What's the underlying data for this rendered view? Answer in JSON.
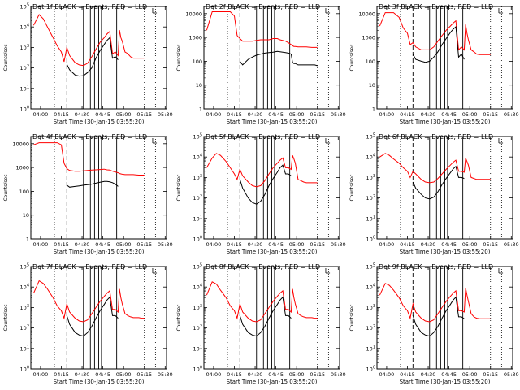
{
  "figure": {
    "title_suffix": "BLACK = Events, RED = LLD",
    "ylabel": "Counts/sec",
    "xlabel": "Start Time (30-Jan-15 03:55:20)",
    "x_tick_labels": [
      "04:00",
      "04:15",
      "04:30",
      "04:45",
      "05:00",
      "05:15",
      "05:30"
    ],
    "series_colors": {
      "events": "#000000",
      "lld": "#ff0000"
    }
  },
  "chart_data": [
    {
      "type": "line",
      "title": "Det 1f",
      "detector": "1f",
      "ylim": [
        1,
        100000
      ],
      "yscale": "log",
      "ytick_labels": [
        "10^0",
        "10^1",
        "10^2",
        "10^3",
        "10^4",
        "10^5"
      ],
      "ytick_values": [
        1,
        10,
        100,
        1000,
        10000,
        100000
      ],
      "x_minutes": [
        0,
        4,
        7,
        10,
        14,
        17,
        20,
        22,
        24,
        26,
        30,
        33,
        36,
        39,
        42,
        45,
        48,
        51,
        53,
        55,
        57,
        59,
        61,
        62,
        63,
        64,
        66,
        68,
        70,
        72,
        74,
        76,
        78,
        80
      ],
      "lld": [
        12000,
        40000,
        25000,
        10000,
        3000,
        1200,
        600,
        200,
        1000,
        400,
        180,
        140,
        130,
        170,
        350,
        800,
        1800,
        3000,
        4500,
        6000,
        500,
        600,
        400,
        7000,
        3000,
        2000,
        600,
        500,
        350,
        300,
        300,
        300,
        300,
        300
      ],
      "events": [
        null,
        null,
        null,
        null,
        null,
        null,
        null,
        null,
        150,
        80,
        45,
        40,
        42,
        60,
        100,
        300,
        700,
        1400,
        2200,
        3000,
        300,
        350,
        250,
        null,
        null,
        null,
        null,
        null,
        null,
        null,
        null,
        null,
        null,
        null
      ]
    },
    {
      "type": "line",
      "title": "Det 2f",
      "detector": "2f",
      "ylim": [
        1,
        20000
      ],
      "yscale": "log",
      "ytick_labels": [
        "1",
        "10",
        "100",
        "1000",
        "10000"
      ],
      "ytick_values": [
        1,
        10,
        100,
        1000,
        10000
      ],
      "x_minutes": [
        0,
        4,
        7,
        10,
        14,
        17,
        20,
        22,
        24,
        26,
        30,
        33,
        36,
        39,
        42,
        45,
        48,
        51,
        53,
        55,
        57,
        59,
        61,
        62,
        63,
        64,
        66,
        68,
        70,
        72,
        74,
        76,
        78,
        80
      ],
      "lld": [
        2000,
        12000,
        12000,
        12000,
        12000,
        12000,
        8000,
        1200,
        900,
        700,
        700,
        700,
        750,
        800,
        800,
        800,
        900,
        900,
        800,
        750,
        700,
        600,
        500,
        450,
        420,
        420,
        400,
        400,
        400,
        400,
        390,
        380,
        380,
        380
      ],
      "events": [
        null,
        null,
        null,
        null,
        null,
        null,
        null,
        null,
        100,
        70,
        120,
        150,
        180,
        200,
        220,
        230,
        240,
        260,
        250,
        240,
        230,
        220,
        200,
        90,
        80,
        80,
        70,
        70,
        70,
        70,
        70,
        70,
        70,
        65
      ]
    },
    {
      "type": "line",
      "title": "Det 3f",
      "detector": "3f",
      "ylim": [
        1,
        20000
      ],
      "yscale": "log",
      "ytick_labels": [
        "1",
        "10",
        "100",
        "1000",
        "10000"
      ],
      "ytick_values": [
        1,
        10,
        100,
        1000,
        10000
      ],
      "x_minutes": [
        0,
        4,
        7,
        10,
        14,
        17,
        20,
        22,
        24,
        26,
        30,
        33,
        36,
        39,
        42,
        45,
        48,
        51,
        53,
        55,
        57,
        59,
        61,
        62,
        63,
        64,
        66,
        68,
        70,
        72,
        74,
        76,
        78,
        80
      ],
      "lld": [
        3000,
        11000,
        11000,
        11000,
        7000,
        2500,
        1500,
        500,
        600,
        400,
        300,
        300,
        300,
        400,
        700,
        1200,
        2000,
        3000,
        4000,
        5000,
        300,
        400,
        300,
        3500,
        1500,
        800,
        300,
        250,
        200,
        190,
        190,
        190,
        190,
        190
      ],
      "events": [
        null,
        null,
        null,
        null,
        null,
        null,
        null,
        null,
        200,
        120,
        100,
        90,
        100,
        150,
        250,
        500,
        900,
        1600,
        2200,
        2800,
        150,
        200,
        120,
        null,
        null,
        null,
        null,
        null,
        null,
        null,
        null,
        null,
        null,
        null
      ]
    },
    {
      "type": "line",
      "title": "Det 4f",
      "detector": "4f",
      "ylim": [
        1,
        20000
      ],
      "yscale": "log",
      "ytick_labels": [
        "1",
        "10",
        "100",
        "1000",
        "10000"
      ],
      "ytick_values": [
        1,
        10,
        100,
        1000,
        10000
      ],
      "x_minutes": [
        0,
        4,
        7,
        10,
        14,
        17,
        20,
        22,
        24,
        26,
        30,
        33,
        36,
        39,
        42,
        45,
        48,
        51,
        53,
        55,
        57,
        59,
        61,
        62,
        63,
        64,
        66,
        68,
        70,
        72,
        74,
        76,
        78,
        80
      ],
      "lld": [
        9000,
        11000,
        11000,
        11000,
        11000,
        11000,
        9000,
        1500,
        900,
        750,
        700,
        700,
        720,
        750,
        780,
        800,
        820,
        850,
        800,
        780,
        700,
        650,
        600,
        560,
        540,
        520,
        500,
        500,
        500,
        500,
        490,
        480,
        480,
        480
      ],
      "events": [
        null,
        null,
        null,
        null,
        null,
        null,
        null,
        null,
        180,
        150,
        160,
        170,
        180,
        190,
        200,
        220,
        240,
        260,
        260,
        250,
        230,
        200,
        160,
        null,
        null,
        null,
        null,
        null,
        null,
        null,
        null,
        null,
        null,
        null
      ]
    },
    {
      "type": "line",
      "title": "Det 5f",
      "detector": "5f",
      "ylim": [
        1,
        100000
      ],
      "yscale": "log",
      "ytick_labels": [
        "10^0",
        "10^1",
        "10^2",
        "10^3",
        "10^4",
        "10^5"
      ],
      "ytick_values": [
        1,
        10,
        100,
        1000,
        10000,
        100000
      ],
      "x_minutes": [
        0,
        4,
        7,
        10,
        14,
        17,
        20,
        22,
        24,
        26,
        30,
        33,
        36,
        39,
        42,
        45,
        48,
        51,
        53,
        55,
        57,
        59,
        61,
        62,
        63,
        64,
        66,
        68,
        70,
        72,
        74,
        76,
        78,
        80
      ],
      "lld": [
        3000,
        9000,
        15000,
        12000,
        6000,
        3000,
        1500,
        800,
        2500,
        1200,
        600,
        400,
        350,
        400,
        700,
        1500,
        3000,
        5000,
        7000,
        9000,
        3000,
        3000,
        2500,
        12000,
        8000,
        5000,
        800,
        700,
        600,
        550,
        550,
        550,
        550,
        550
      ],
      "events": [
        null,
        null,
        null,
        null,
        null,
        null,
        null,
        null,
        800,
        300,
        100,
        60,
        50,
        70,
        150,
        400,
        900,
        1800,
        3000,
        4000,
        1500,
        1500,
        1200,
        null,
        null,
        null,
        null,
        null,
        null,
        null,
        null,
        null,
        null,
        null
      ]
    },
    {
      "type": "line",
      "title": "Det 6f",
      "detector": "6f",
      "ylim": [
        1,
        100000
      ],
      "yscale": "log",
      "ytick_labels": [
        "10^0",
        "10^1",
        "10^2",
        "10^3",
        "10^4",
        "10^5"
      ],
      "ytick_values": [
        1,
        10,
        100,
        1000,
        10000,
        100000
      ],
      "x_minutes": [
        0,
        4,
        7,
        10,
        14,
        17,
        20,
        22,
        24,
        26,
        30,
        33,
        36,
        39,
        42,
        45,
        48,
        51,
        53,
        55,
        57,
        59,
        61,
        62,
        63,
        64,
        66,
        68,
        70,
        72,
        74,
        76,
        78,
        80
      ],
      "lld": [
        10000,
        15000,
        12000,
        8000,
        5000,
        3000,
        2000,
        1000,
        2000,
        1500,
        800,
        600,
        550,
        600,
        900,
        1500,
        2500,
        4000,
        5500,
        7000,
        2000,
        2000,
        1800,
        9000,
        6000,
        4000,
        1000,
        900,
        800,
        800,
        800,
        800,
        800,
        800
      ],
      "events": [
        null,
        null,
        null,
        null,
        null,
        null,
        null,
        null,
        600,
        300,
        150,
        100,
        90,
        110,
        200,
        450,
        900,
        1700,
        2600,
        3500,
        1000,
        1000,
        900,
        null,
        null,
        null,
        null,
        null,
        null,
        null,
        null,
        null,
        null,
        null
      ]
    },
    {
      "type": "line",
      "title": "Det 7f",
      "detector": "7f",
      "ylim": [
        1,
        100000
      ],
      "yscale": "log",
      "ytick_labels": [
        "10^0",
        "10^1",
        "10^2",
        "10^3",
        "10^4",
        "10^5"
      ],
      "ytick_values": [
        1,
        10,
        100,
        1000,
        10000,
        100000
      ],
      "x_minutes": [
        0,
        4,
        7,
        10,
        14,
        17,
        20,
        22,
        24,
        26,
        30,
        33,
        36,
        39,
        42,
        45,
        48,
        51,
        53,
        55,
        57,
        59,
        61,
        62,
        63,
        64,
        66,
        68,
        70,
        72,
        74,
        76,
        78,
        80
      ],
      "lld": [
        5000,
        20000,
        15000,
        8000,
        3000,
        1200,
        700,
        300,
        1500,
        600,
        300,
        220,
        200,
        250,
        500,
        1000,
        2000,
        3500,
        5000,
        6500,
        800,
        800,
        600,
        8000,
        3000,
        1500,
        500,
        400,
        350,
        320,
        320,
        320,
        300,
        300
      ],
      "events": [
        null,
        null,
        null,
        null,
        null,
        null,
        null,
        null,
        400,
        150,
        60,
        45,
        40,
        60,
        120,
        300,
        700,
        1400,
        2300,
        3200,
        400,
        400,
        300,
        null,
        null,
        null,
        null,
        null,
        null,
        null,
        null,
        null,
        null,
        null
      ]
    },
    {
      "type": "line",
      "title": "Det 8f",
      "detector": "8f",
      "ylim": [
        1,
        100000
      ],
      "yscale": "log",
      "ytick_labels": [
        "10^0",
        "10^1",
        "10^2",
        "10^3",
        "10^4",
        "10^5"
      ],
      "ytick_values": [
        1,
        10,
        100,
        1000,
        10000,
        100000
      ],
      "x_minutes": [
        0,
        4,
        7,
        10,
        14,
        17,
        20,
        22,
        24,
        26,
        30,
        33,
        36,
        39,
        42,
        45,
        48,
        51,
        53,
        55,
        57,
        59,
        61,
        62,
        63,
        64,
        66,
        68,
        70,
        72,
        74,
        76,
        78,
        80
      ],
      "lld": [
        4000,
        18000,
        14000,
        7000,
        3000,
        1200,
        700,
        300,
        1500,
        600,
        300,
        220,
        200,
        250,
        500,
        1000,
        2000,
        3500,
        5000,
        6500,
        800,
        800,
        600,
        8000,
        3000,
        1500,
        500,
        400,
        350,
        320,
        320,
        320,
        300,
        300
      ],
      "events": [
        null,
        null,
        null,
        null,
        null,
        null,
        null,
        null,
        400,
        150,
        60,
        45,
        40,
        60,
        120,
        300,
        700,
        1400,
        2300,
        3200,
        400,
        400,
        300,
        null,
        null,
        null,
        null,
        null,
        null,
        null,
        null,
        null,
        null,
        null
      ]
    },
    {
      "type": "line",
      "title": "Det 9f",
      "detector": "9f",
      "ylim": [
        1,
        100000
      ],
      "yscale": "log",
      "ytick_labels": [
        "10^0",
        "10^1",
        "10^2",
        "10^3",
        "10^4",
        "10^5"
      ],
      "ytick_values": [
        1,
        10,
        100,
        1000,
        10000,
        100000
      ],
      "x_minutes": [
        0,
        4,
        7,
        10,
        14,
        17,
        20,
        22,
        24,
        26,
        30,
        33,
        36,
        39,
        42,
        45,
        48,
        51,
        53,
        55,
        57,
        59,
        61,
        62,
        63,
        64,
        66,
        68,
        70,
        72,
        74,
        76,
        78,
        80
      ],
      "lld": [
        4000,
        15000,
        12000,
        7000,
        3000,
        1200,
        700,
        300,
        1500,
        600,
        300,
        220,
        200,
        250,
        500,
        1000,
        2000,
        3500,
        5000,
        6500,
        700,
        700,
        600,
        9000,
        4000,
        2000,
        500,
        350,
        300,
        280,
        280,
        280,
        280,
        280
      ],
      "events": [
        null,
        null,
        null,
        null,
        null,
        null,
        null,
        null,
        400,
        150,
        60,
        45,
        40,
        60,
        120,
        300,
        700,
        1400,
        2300,
        3200,
        350,
        350,
        280,
        null,
        null,
        null,
        null,
        null,
        null,
        null,
        null,
        null,
        null,
        null
      ]
    }
  ]
}
